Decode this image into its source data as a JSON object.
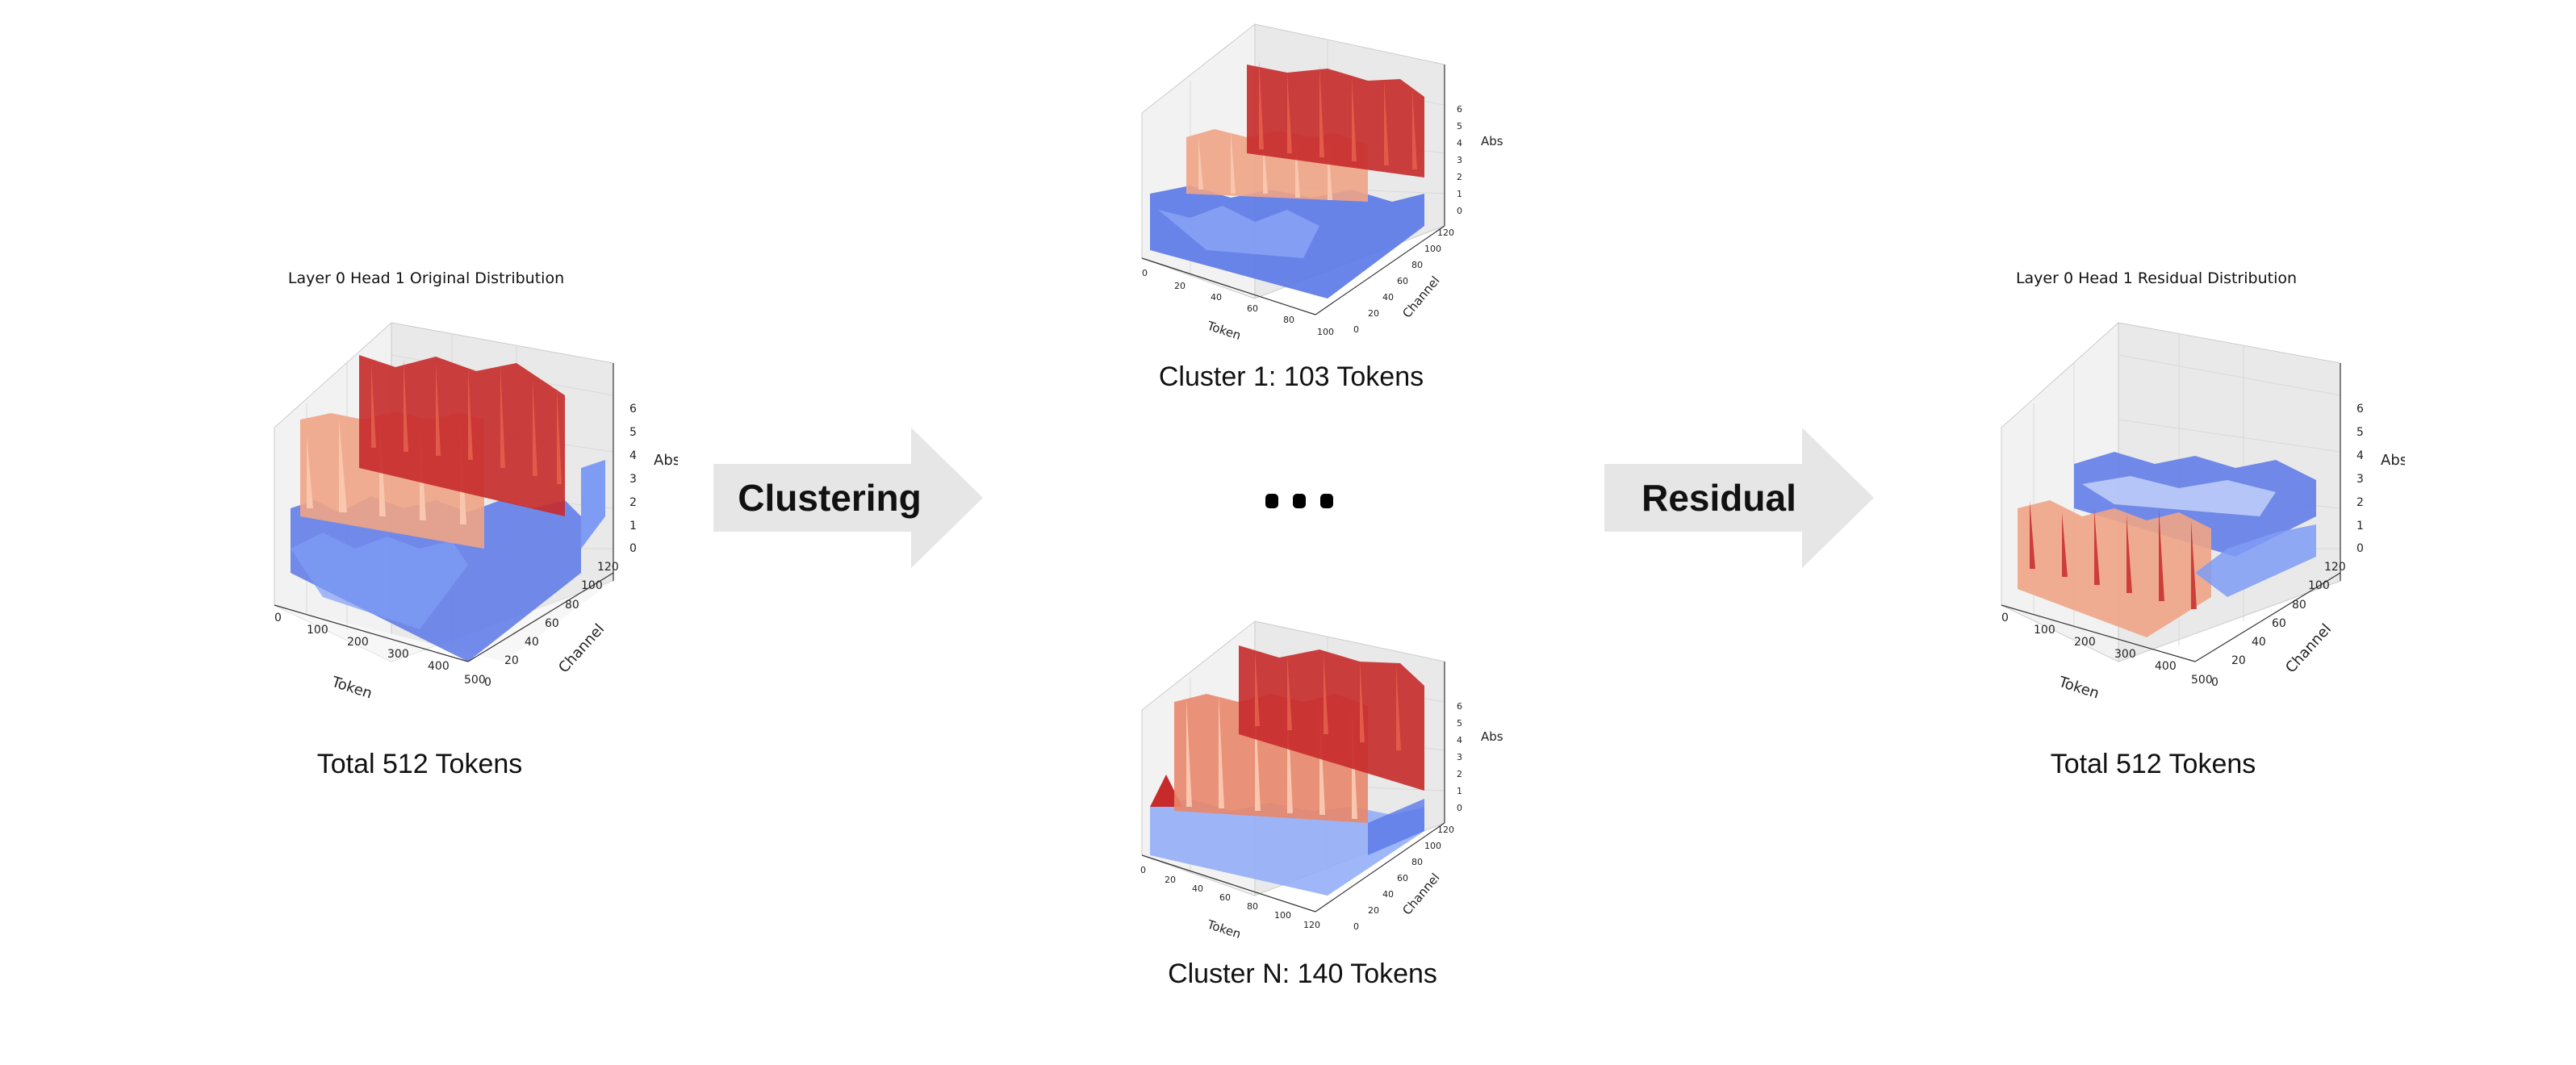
{
  "original": {
    "title": "Layer 0 Head 1 Original Distribution",
    "caption": "Total 512 Tokens",
    "x_label": "Token",
    "y_label": "Channel",
    "z_label": "Abs",
    "x_ticks": [
      "0",
      "100",
      "200",
      "300",
      "400",
      "500"
    ],
    "y_ticks": [
      "0",
      "20",
      "40",
      "60",
      "80",
      "100",
      "120"
    ],
    "z_ticks": [
      "0",
      "1",
      "2",
      "3",
      "4",
      "5",
      "6"
    ]
  },
  "cluster1": {
    "caption": "Cluster 1: 103 Tokens",
    "x_label": "Token",
    "y_label": "Channel",
    "z_label": "Abs",
    "x_ticks": [
      "0",
      "20",
      "40",
      "60",
      "80",
      "100"
    ],
    "y_ticks": [
      "0",
      "20",
      "40",
      "60",
      "80",
      "100",
      "120"
    ],
    "z_ticks": [
      "0",
      "1",
      "2",
      "3",
      "4",
      "5",
      "6"
    ]
  },
  "clusterN": {
    "caption": "Cluster N: 140 Tokens",
    "x_label": "Token",
    "y_label": "Channel",
    "z_label": "Abs",
    "x_ticks": [
      "0",
      "20",
      "40",
      "60",
      "80",
      "100",
      "120"
    ],
    "y_ticks": [
      "0",
      "20",
      "40",
      "60",
      "80",
      "100",
      "120"
    ],
    "z_ticks": [
      "0",
      "1",
      "2",
      "3",
      "4",
      "5",
      "6"
    ]
  },
  "residual": {
    "title": "Layer 0 Head 1 Residual Distribution",
    "caption": "Total 512 Tokens",
    "x_label": "Token",
    "y_label": "Channel",
    "z_label": "Abs",
    "x_ticks": [
      "0",
      "100",
      "200",
      "300",
      "400",
      "500"
    ],
    "y_ticks": [
      "0",
      "20",
      "40",
      "60",
      "80",
      "100",
      "120"
    ],
    "z_ticks": [
      "0",
      "1",
      "2",
      "3",
      "4",
      "5",
      "6"
    ]
  },
  "arrows": {
    "clustering": "Clustering",
    "residual": "Residual"
  },
  "colors": {
    "arrow_fill": "#e6e6e6",
    "surface_red": "#c62a2a",
    "surface_salmon": "#f0a486",
    "surface_blue": "#5a78e8",
    "pane": "#f2f2f2"
  }
}
